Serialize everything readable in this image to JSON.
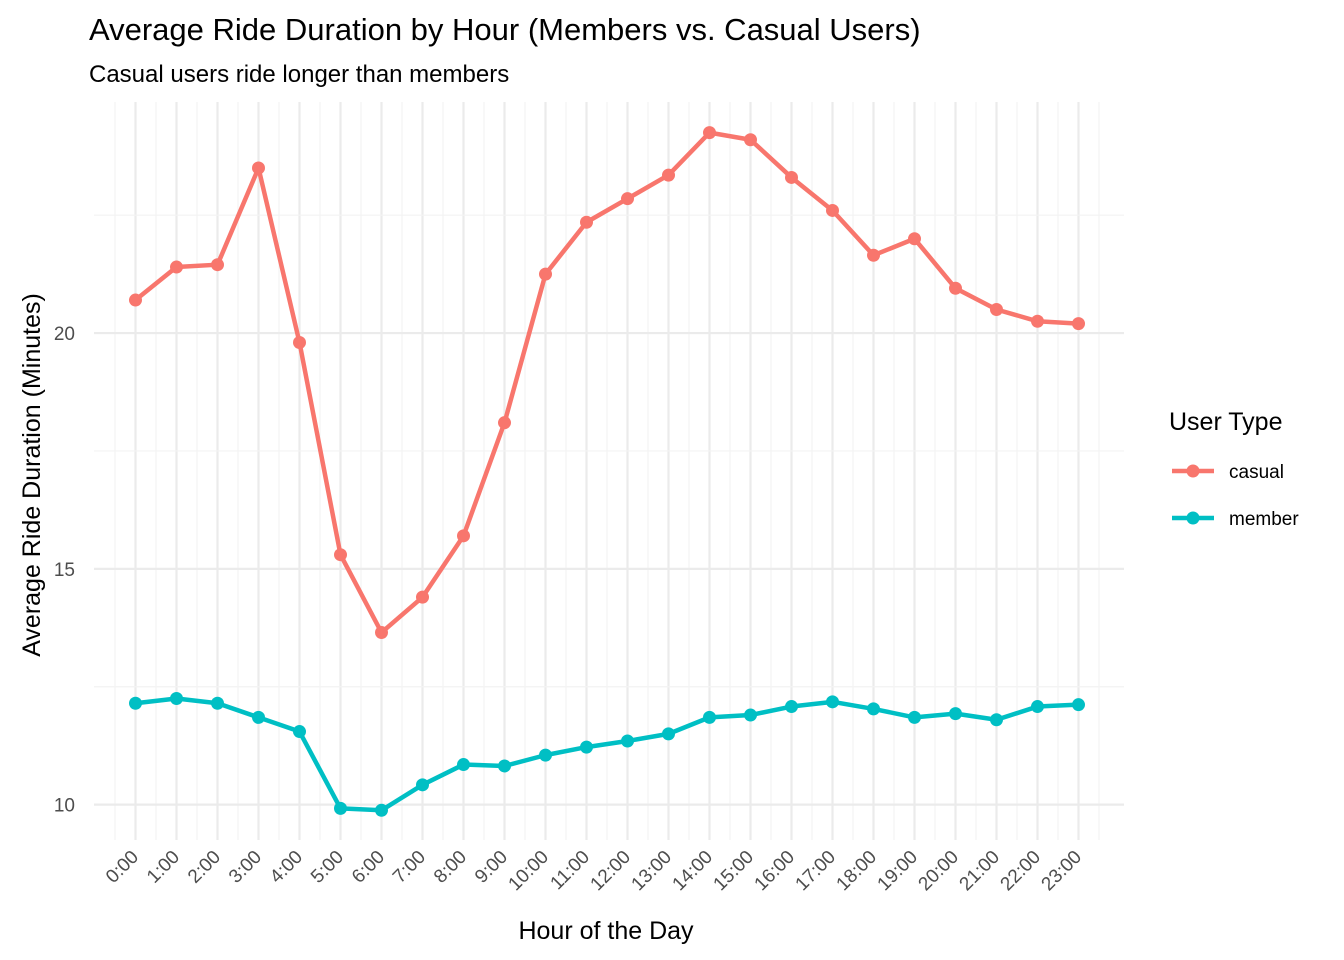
{
  "chart_data": {
    "type": "line",
    "title": "Average Ride Duration by Hour (Members vs. Casual Users)",
    "subtitle": "Casual users ride longer than members",
    "xlabel": "Hour of the Day",
    "ylabel": "Average Ride Duration (Minutes)",
    "categories": [
      "0:00",
      "1:00",
      "2:00",
      "3:00",
      "4:00",
      "5:00",
      "6:00",
      "7:00",
      "8:00",
      "9:00",
      "10:00",
      "11:00",
      "12:00",
      "13:00",
      "14:00",
      "15:00",
      "16:00",
      "17:00",
      "18:00",
      "19:00",
      "20:00",
      "21:00",
      "22:00",
      "23:00"
    ],
    "ylim": [
      9.25,
      24.9
    ],
    "y_ticks": [
      10,
      15,
      20
    ],
    "y_tick_labels": [
      "10",
      "15",
      "20"
    ],
    "grid": true,
    "legend": {
      "title": "User Type",
      "position": "right"
    },
    "series": [
      {
        "name": "casual",
        "color": "#F8766D",
        "values": [
          20.7,
          21.4,
          21.45,
          23.5,
          19.8,
          15.3,
          13.65,
          14.4,
          15.7,
          18.1,
          21.25,
          22.35,
          22.85,
          23.35,
          24.25,
          24.1,
          23.3,
          22.6,
          21.65,
          22.0,
          20.95,
          20.5,
          20.25,
          20.2
        ]
      },
      {
        "name": "member",
        "color": "#00BFC4",
        "values": [
          12.15,
          12.25,
          12.15,
          11.85,
          11.55,
          9.92,
          9.88,
          10.42,
          10.85,
          10.82,
          11.05,
          11.22,
          11.35,
          11.5,
          11.85,
          11.9,
          12.08,
          12.18,
          12.03,
          11.85,
          11.93,
          11.8,
          12.08,
          12.12
        ]
      }
    ]
  }
}
